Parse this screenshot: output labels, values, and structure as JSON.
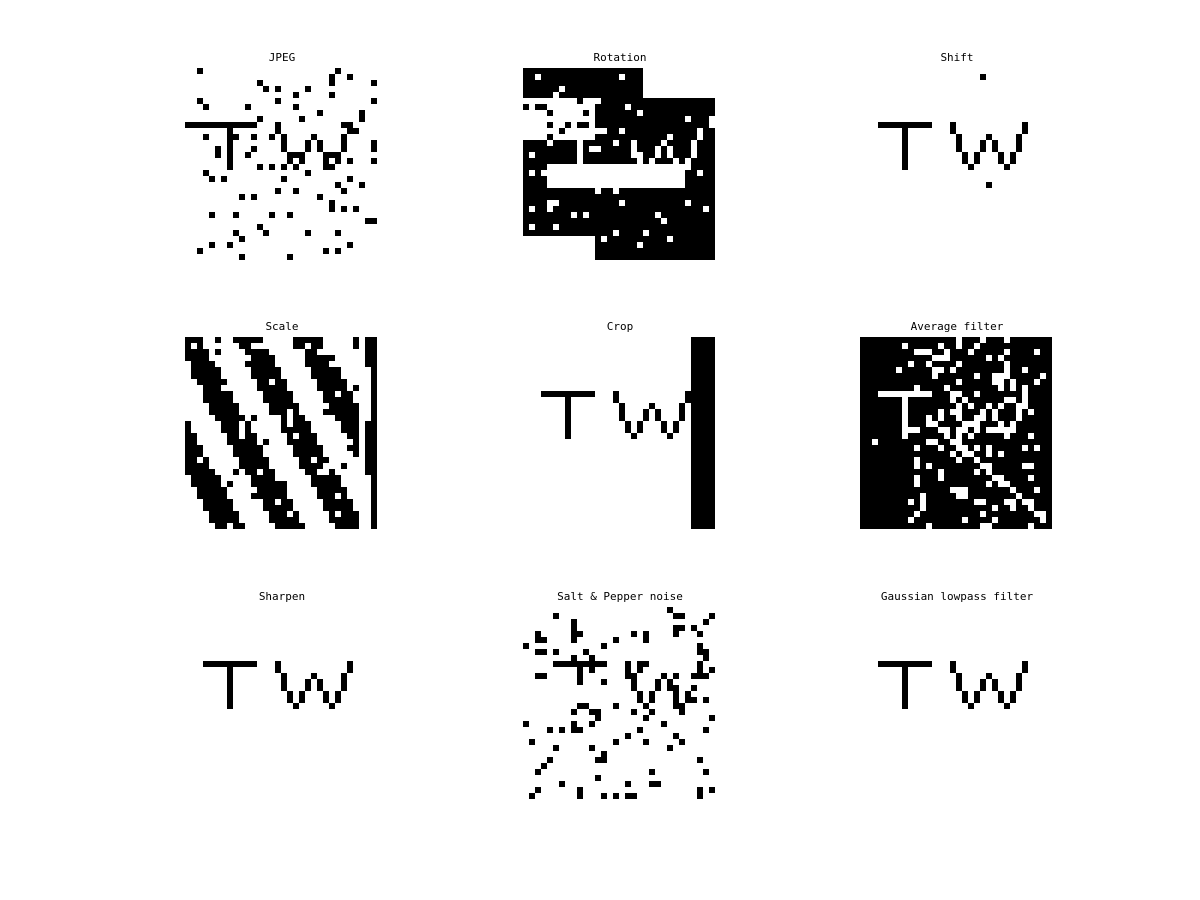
{
  "figure": {
    "background": "#ffffff",
    "ink": "#000000",
    "panels": [
      {
        "id": "jpeg",
        "title": "JPEG"
      },
      {
        "id": "rotation",
        "title": "Rotation"
      },
      {
        "id": "shift",
        "title": "Shift"
      },
      {
        "id": "scale",
        "title": "Scale"
      },
      {
        "id": "crop",
        "title": "Crop"
      },
      {
        "id": "average-filter",
        "title": "Average filter"
      },
      {
        "id": "sharpen",
        "title": "Sharpen"
      },
      {
        "id": "salt-pepper-noise",
        "title": "Salt & Pepper noise"
      },
      {
        "id": "gaussian-lowpass-filter",
        "title": "Gaussian lowpass filter"
      }
    ]
  }
}
